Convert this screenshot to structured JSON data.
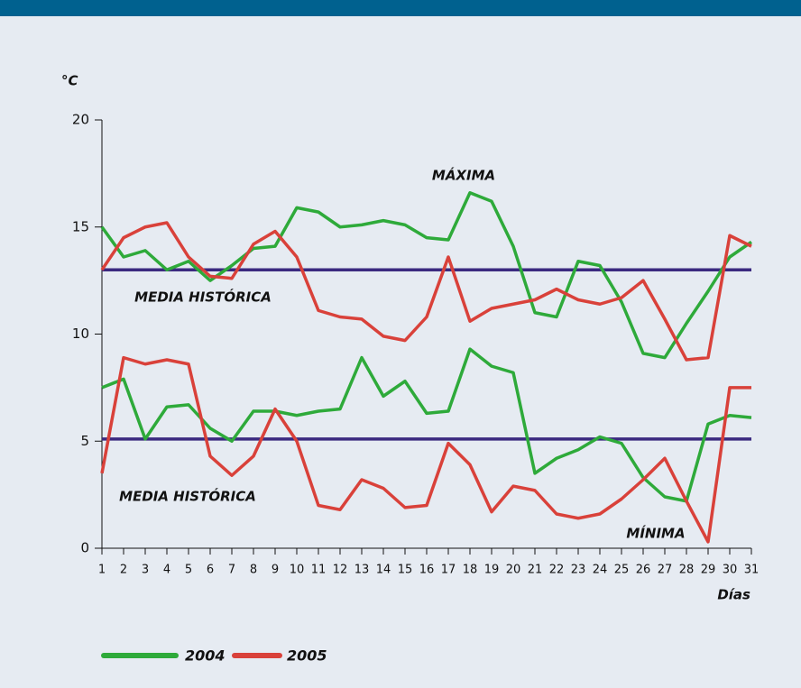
{
  "chart_data": {
    "type": "line",
    "y_label": "°C",
    "x_label": "Días",
    "x": [
      1,
      2,
      3,
      4,
      5,
      6,
      7,
      8,
      9,
      10,
      11,
      12,
      13,
      14,
      15,
      16,
      17,
      18,
      19,
      20,
      21,
      22,
      23,
      24,
      25,
      26,
      27,
      28,
      29,
      30,
      31
    ],
    "xlim": [
      1,
      31
    ],
    "xticks": [
      1,
      2,
      3,
      4,
      5,
      6,
      7,
      8,
      9,
      10,
      11,
      12,
      13,
      14,
      15,
      16,
      17,
      18,
      19,
      20,
      21,
      22,
      23,
      24,
      25,
      26,
      27,
      28,
      29,
      30,
      31
    ],
    "ylim": [
      0,
      20
    ],
    "yticks": [
      0,
      5,
      10,
      15,
      20
    ],
    "reference_color": "#3b2a80",
    "groups": [
      {
        "label": "MÁXIMA",
        "reference": {
          "label": "MEDIA HISTÓRICA",
          "value": 13
        },
        "series": [
          {
            "name": "2004",
            "color": "#2eaa3a",
            "values": [
              15.0,
              13.6,
              13.9,
              13.0,
              13.4,
              12.5,
              13.2,
              14.0,
              14.1,
              15.9,
              15.7,
              15.0,
              15.1,
              15.3,
              15.1,
              14.5,
              14.4,
              16.6,
              16.2,
              14.1,
              11.0,
              10.8,
              13.4,
              13.2,
              11.5,
              9.1,
              8.9,
              10.5,
              12.0,
              13.6,
              14.3
            ]
          },
          {
            "name": "2005",
            "color": "#d9413a",
            "values": [
              13.0,
              14.5,
              15.0,
              15.2,
              13.6,
              12.7,
              12.6,
              14.2,
              14.8,
              13.6,
              11.1,
              10.8,
              10.7,
              9.9,
              9.7,
              10.8,
              13.6,
              10.6,
              11.2,
              11.4,
              11.6,
              12.1,
              11.6,
              11.4,
              11.7,
              12.5,
              10.7,
              8.8,
              8.9,
              14.6,
              14.1
            ]
          }
        ]
      },
      {
        "label": "MÍNIMA",
        "reference": {
          "label": "MEDIA HISTÓRICA",
          "value": 5.1
        },
        "series": [
          {
            "name": "2004",
            "color": "#2eaa3a",
            "values": [
              7.5,
              7.9,
              5.1,
              6.6,
              6.7,
              5.6,
              5.0,
              6.4,
              6.4,
              6.2,
              6.4,
              6.5,
              8.9,
              7.1,
              7.8,
              6.3,
              6.4,
              9.3,
              8.5,
              8.2,
              3.5,
              4.2,
              4.6,
              5.2,
              4.9,
              3.3,
              2.4,
              2.2,
              5.8,
              6.2,
              6.1
            ]
          },
          {
            "name": "2005",
            "color": "#d9413a",
            "values": [
              3.5,
              8.9,
              8.6,
              8.8,
              8.6,
              4.3,
              3.4,
              4.3,
              6.5,
              5.0,
              2.0,
              1.8,
              3.2,
              2.8,
              1.9,
              2.0,
              4.9,
              3.9,
              1.7,
              2.9,
              2.7,
              1.6,
              1.4,
              1.6,
              2.3,
              3.2,
              4.2,
              2.2,
              0.3,
              7.5,
              7.5
            ]
          }
        ]
      }
    ]
  }
}
